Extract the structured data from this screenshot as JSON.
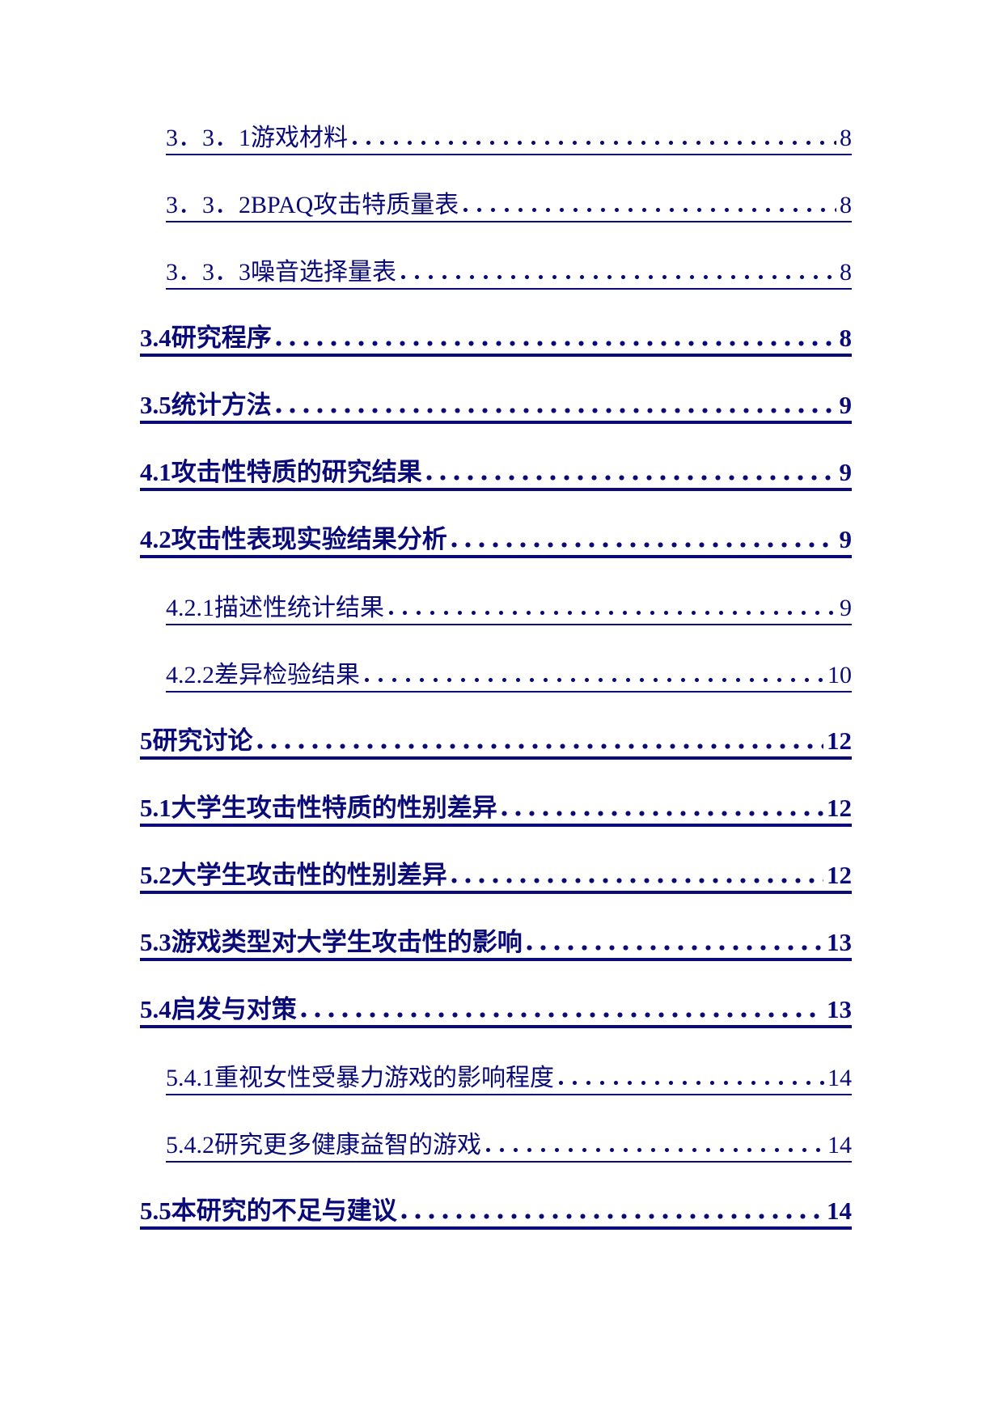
{
  "page": {
    "background_color": "#ffffff",
    "text_color": "#0a0a78"
  },
  "toc": {
    "entries": [
      {
        "label": "3．3．1游戏材料",
        "page": "8",
        "level": 3,
        "bold": false
      },
      {
        "label": "3．3．2BPAQ攻击特质量表",
        "page": "8",
        "level": 3,
        "bold": false
      },
      {
        "label": "3．3．3噪音选择量表",
        "page": "8",
        "level": 3,
        "bold": false
      },
      {
        "label": "3.4研究程序",
        "page": "8",
        "level": 2,
        "bold": true
      },
      {
        "label": "3.5统计方法",
        "page": "9",
        "level": 2,
        "bold": true
      },
      {
        "label": "4.1攻击性特质的研究结果",
        "page": "9",
        "level": 2,
        "bold": true
      },
      {
        "label": "4.2攻击性表现实验结果分析",
        "page": "9",
        "level": 2,
        "bold": true
      },
      {
        "label": "4.2.1描述性统计结果",
        "page": "9",
        "level": 3,
        "bold": false
      },
      {
        "label": "4.2.2差异检验结果",
        "page": "10",
        "level": 3,
        "bold": false
      },
      {
        "label": "5研究讨论",
        "page": "12",
        "level": 2,
        "bold": true
      },
      {
        "label": "5.1大学生攻击性特质的性别差异",
        "page": "12",
        "level": 2,
        "bold": true
      },
      {
        "label": "5.2大学生攻击性的性别差异",
        "page": "12",
        "level": 2,
        "bold": true
      },
      {
        "label": "5.3游戏类型对大学生攻击性的影响",
        "page": "13",
        "level": 2,
        "bold": true
      },
      {
        "label": "5.4启发与对策",
        "page": "13",
        "level": 2,
        "bold": true
      },
      {
        "label": "5.4.1重视女性受暴力游戏的影响程度",
        "page": "14",
        "level": 3,
        "bold": false
      },
      {
        "label": "5.4.2研究更多健康益智的游戏",
        "page": "14",
        "level": 3,
        "bold": false
      },
      {
        "label": "5.5本研究的不足与建议",
        "page": "14",
        "level": 2,
        "bold": true
      }
    ]
  }
}
